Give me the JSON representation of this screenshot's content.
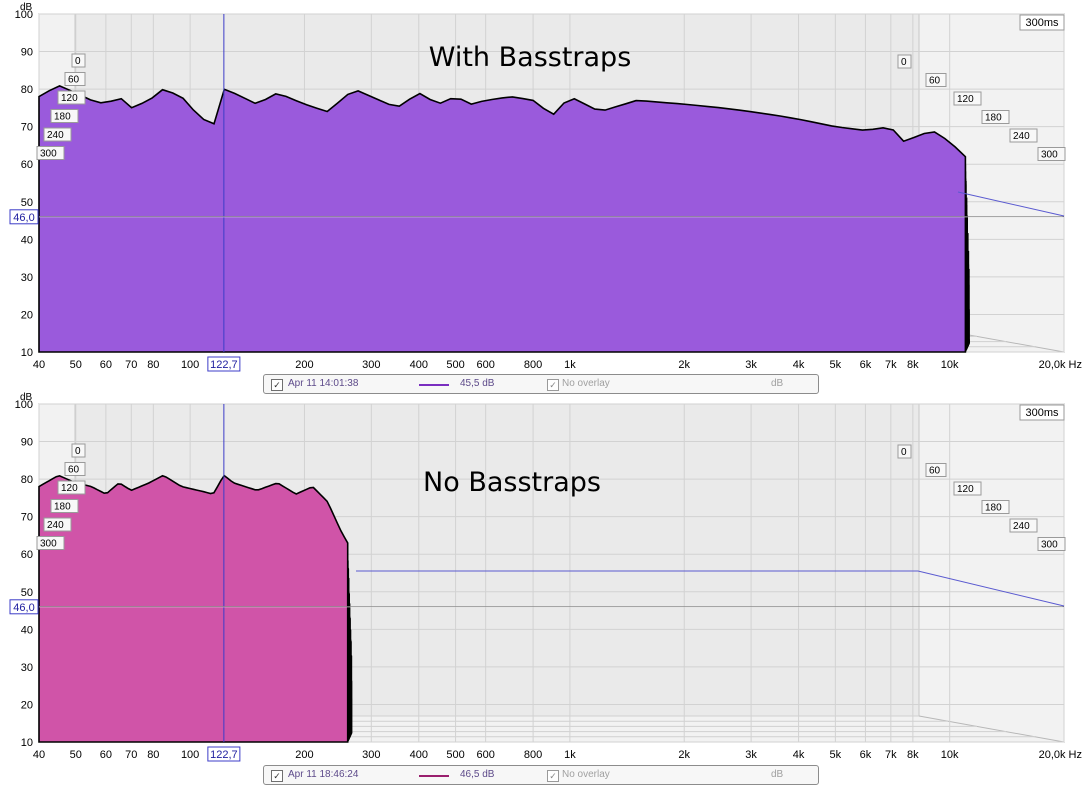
{
  "charts": [
    {
      "title": "With Basstraps",
      "y_unit": "dB",
      "time_label": "300ms",
      "cursor_x_label": "122,7",
      "cursor_y_label": "46,0",
      "legend": {
        "date": "Apr 11 14:01:38",
        "level": "45,5 dB",
        "overlay": "No overlay",
        "unit": "dB",
        "check": "✓"
      }
    },
    {
      "title": "No Basstraps",
      "y_unit": "dB",
      "time_label": "300ms",
      "cursor_x_label": "122,7",
      "cursor_y_label": "46,0",
      "legend": {
        "date": "Apr 11 18:46:24",
        "level": "46,5 dB",
        "overlay": "No overlay",
        "unit": "dB",
        "check": "✓"
      }
    }
  ],
  "chart_data": [
    {
      "type": "area",
      "title": "With Basstraps",
      "xlabel": "Hz",
      "ylabel": "dB",
      "x_scale": "log",
      "xlim": [
        40,
        20000
      ],
      "ylim": [
        10,
        100
      ],
      "x_ticks": [
        40,
        50,
        60,
        70,
        80,
        100,
        200,
        300,
        400,
        500,
        600,
        800,
        1000,
        2000,
        3000,
        4000,
        5000,
        6000,
        7000,
        8000,
        10000,
        20000
      ],
      "x_tick_labels": [
        "40",
        "50",
        "60",
        "70",
        "80",
        "100",
        "200",
        "300",
        "400",
        "500",
        "600",
        "800",
        "1k",
        "2k",
        "3k",
        "4k",
        "5k",
        "6k",
        "7k",
        "8k",
        "10k",
        "20,0k Hz"
      ],
      "y_ticks": [
        10,
        20,
        30,
        40,
        50,
        60,
        70,
        80,
        90,
        100
      ],
      "time_ticks_ms": [
        0,
        60,
        120,
        180,
        240,
        300
      ],
      "time_tick_labels": [
        "0",
        "60",
        "120",
        "180",
        "240",
        "300"
      ],
      "time_range_ms": 300,
      "cursor": {
        "freq_hz": 122.7,
        "level_db": 46.0
      },
      "grid": true,
      "colors": {
        "fill": "#7a2ec0",
        "fill_light": "#9a5adc",
        "outline": "#000000",
        "cursor": "#3c3cc8",
        "level_line": "#5a5ad0"
      },
      "front_slice": {
        "x": [
          40,
          45,
          50,
          55,
          60,
          65,
          70,
          78,
          85,
          95,
          105,
          115,
          122.7,
          130,
          150,
          170,
          200,
          230,
          270,
          300,
          350,
          400,
          450,
          500,
          550,
          600,
          700,
          800,
          900,
          1000,
          1200,
          1500,
          2000,
          2500,
          3000,
          3500,
          4000,
          5000,
          6000,
          7000,
          7500,
          8000,
          9000,
          10000,
          11000
        ],
        "y": [
          78,
          81,
          79,
          77,
          76,
          78,
          75,
          77,
          80,
          78,
          73,
          70,
          80,
          79,
          76,
          79,
          76,
          74,
          80,
          78,
          75,
          79,
          76,
          78,
          76,
          77,
          78,
          77,
          73,
          78,
          74,
          77,
          76,
          75,
          74,
          73,
          72,
          70,
          69,
          70,
          66,
          67,
          69,
          66,
          62
        ]
      },
      "decay_db_over_range": 55
    },
    {
      "type": "area",
      "title": "No Basstraps",
      "xlabel": "Hz",
      "ylabel": "dB",
      "x_scale": "log",
      "xlim": [
        40,
        20000
      ],
      "ylim": [
        10,
        100
      ],
      "x_ticks": [
        40,
        50,
        60,
        70,
        80,
        100,
        200,
        300,
        400,
        500,
        600,
        800,
        1000,
        2000,
        3000,
        4000,
        5000,
        6000,
        7000,
        8000,
        10000,
        20000
      ],
      "x_tick_labels": [
        "40",
        "50",
        "60",
        "70",
        "80",
        "100",
        "200",
        "300",
        "400",
        "500",
        "600",
        "800",
        "1k",
        "2k",
        "3k",
        "4k",
        "5k",
        "6k",
        "7k",
        "8k",
        "10k",
        "20,0k Hz"
      ],
      "y_ticks": [
        10,
        20,
        30,
        40,
        50,
        60,
        70,
        80,
        90,
        100
      ],
      "time_ticks_ms": [
        0,
        60,
        120,
        180,
        240,
        300
      ],
      "time_tick_labels": [
        "0",
        "60",
        "120",
        "180",
        "240",
        "300"
      ],
      "time_range_ms": 300,
      "cursor": {
        "freq_hz": 122.7,
        "level_db": 46.0
      },
      "grid": true,
      "colors": {
        "fill": "#b52f8c",
        "fill_light": "#d054a8",
        "outline": "#000000",
        "cursor": "#3c3cc8",
        "level_line": "#5a5ad0"
      },
      "front_slice": {
        "x": [
          40,
          45,
          50,
          55,
          60,
          65,
          70,
          78,
          85,
          95,
          105,
          115,
          122.7,
          130,
          150,
          170,
          190,
          210,
          230,
          250,
          260
        ],
        "y": [
          78,
          81,
          79,
          78,
          76,
          79,
          77,
          79,
          81,
          78,
          77,
          76,
          81,
          79,
          77,
          79,
          76,
          78,
          74,
          66,
          63
        ]
      },
      "decay_db_over_range": 55
    }
  ]
}
